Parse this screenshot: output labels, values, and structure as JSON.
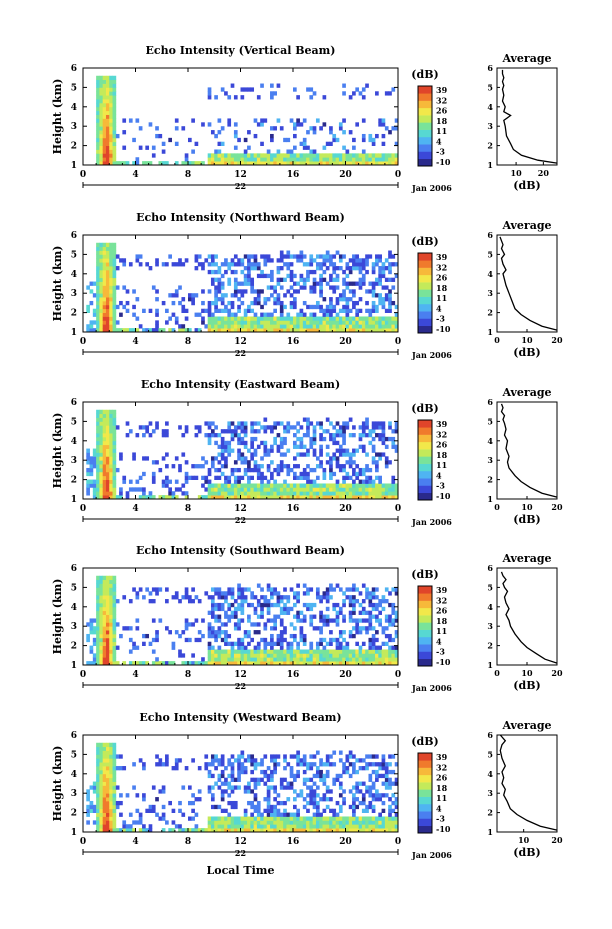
{
  "figure": {
    "xlabel": "Local Time",
    "date_label": "Jan 2006",
    "day_label": "22"
  },
  "colorbar": {
    "unit": "(dB)",
    "ticks": [
      "39",
      "32",
      "26",
      "18",
      "11",
      "4",
      "-3",
      "-10"
    ],
    "colors": [
      "#2a2a8c",
      "#3b48d8",
      "#4a7ff0",
      "#4fb4f2",
      "#57d8d2",
      "#79e39a",
      "#c4ea5a",
      "#f2e84a",
      "#f7b93a",
      "#f07a2c",
      "#e0452a"
    ]
  },
  "chart_data": [
    {
      "type": "heatmap",
      "title": "Echo Intensity (Vertical Beam)",
      "ylabel": "Height (km)",
      "x_ticks": [
        "0",
        "4",
        "8",
        "12",
        "16",
        "20",
        "0"
      ],
      "y_ticks": [
        "1",
        "2",
        "3",
        "4",
        "5",
        "6"
      ],
      "xlim": [
        0,
        24
      ],
      "ylim": [
        1,
        6
      ],
      "profile": {
        "title": "Average",
        "xlabel": "(dB)",
        "x_ticks": [
          "10",
          "20"
        ],
        "y_ticks": [
          "1",
          "2",
          "3",
          "4",
          "5",
          "6"
        ],
        "xlim": [
          3,
          25
        ],
        "ylim": [
          1,
          6
        ],
        "x": [
          25,
          18,
          12,
          9,
          8,
          6.5,
          6,
          5.5,
          8,
          5.5,
          6,
          5,
          5.5,
          5,
          5.5,
          5,
          5.5,
          5,
          5
        ],
        "y": [
          1.1,
          1.25,
          1.5,
          1.8,
          2.1,
          2.5,
          3.0,
          3.3,
          3.55,
          3.75,
          4.0,
          4.3,
          4.6,
          4.9,
          5.1,
          5.3,
          5.5,
          5.7,
          5.9
        ]
      }
    },
    {
      "type": "heatmap",
      "title": "Echo Intensity (Northward Beam)",
      "ylabel": "Height (km)",
      "x_ticks": [
        "0",
        "4",
        "8",
        "12",
        "16",
        "20",
        "0"
      ],
      "y_ticks": [
        "1",
        "2",
        "3",
        "4",
        "5",
        "6"
      ],
      "xlim": [
        0,
        24
      ],
      "ylim": [
        1,
        6
      ],
      "profile": {
        "title": "Average",
        "xlabel": "(dB)",
        "x_ticks": [
          "0",
          "10",
          "20"
        ],
        "y_ticks": [
          "1",
          "2",
          "3",
          "4",
          "5",
          "6"
        ],
        "xlim": [
          0,
          20
        ],
        "ylim": [
          1,
          6
        ],
        "x": [
          20,
          15,
          11,
          8,
          6,
          5,
          4,
          3,
          2.5,
          2,
          3,
          2,
          1.5,
          2.5,
          1.5,
          2,
          1.5,
          1
        ],
        "y": [
          1.1,
          1.3,
          1.6,
          1.9,
          2.2,
          2.6,
          3.0,
          3.4,
          3.7,
          4.0,
          4.2,
          4.5,
          4.8,
          5.0,
          5.3,
          5.5,
          5.7,
          5.9
        ]
      }
    },
    {
      "type": "heatmap",
      "title": "Echo Intensity (Eastward Beam)",
      "ylabel": "Height (km)",
      "x_ticks": [
        "0",
        "4",
        "8",
        "12",
        "16",
        "20",
        "0"
      ],
      "y_ticks": [
        "1",
        "2",
        "3",
        "4",
        "5",
        "6"
      ],
      "xlim": [
        0,
        24
      ],
      "ylim": [
        1,
        6
      ],
      "profile": {
        "title": "Average",
        "xlabel": "(dB)",
        "x_ticks": [
          "0",
          "10",
          "20"
        ],
        "y_ticks": [
          "1",
          "2",
          "3",
          "4",
          "5",
          "6"
        ],
        "xlim": [
          0,
          20
        ],
        "ylim": [
          1,
          6
        ],
        "x": [
          20,
          15,
          11,
          8,
          6,
          4,
          3.5,
          4,
          3,
          3.5,
          2.5,
          3,
          2.5,
          2,
          2.5,
          1.5,
          2,
          1.5
        ],
        "y": [
          1.1,
          1.3,
          1.6,
          1.9,
          2.2,
          2.6,
          2.9,
          3.2,
          3.6,
          4.0,
          4.3,
          4.6,
          4.9,
          5.1,
          5.3,
          5.5,
          5.7,
          5.9
        ]
      }
    },
    {
      "type": "heatmap",
      "title": "Echo Intensity (Southward Beam)",
      "ylabel": "Height (km)",
      "x_ticks": [
        "0",
        "4",
        "8",
        "12",
        "16",
        "20",
        "0"
      ],
      "y_ticks": [
        "1",
        "2",
        "3",
        "4",
        "5",
        "6"
      ],
      "xlim": [
        0,
        24
      ],
      "ylim": [
        1,
        6
      ],
      "profile": {
        "title": "Average",
        "xlabel": "(dB)",
        "x_ticks": [
          "0",
          "10",
          "20"
        ],
        "y_ticks": [
          "1",
          "2",
          "3",
          "4",
          "5",
          "6"
        ],
        "xlim": [
          0,
          20
        ],
        "ylim": [
          1,
          6
        ],
        "x": [
          20,
          16,
          13,
          10,
          8,
          6,
          4.5,
          4,
          3,
          4,
          3,
          2.5,
          3.5,
          2.5,
          2,
          3,
          2,
          1.5
        ],
        "y": [
          1.1,
          1.3,
          1.6,
          1.9,
          2.2,
          2.6,
          3.0,
          3.3,
          3.6,
          3.9,
          4.2,
          4.5,
          4.8,
          5.0,
          5.2,
          5.4,
          5.6,
          5.8
        ]
      }
    },
    {
      "type": "heatmap",
      "title": "Echo Intensity (Westward Beam)",
      "ylabel": "Height (km)",
      "x_ticks": [
        "0",
        "4",
        "8",
        "12",
        "16",
        "20",
        "0"
      ],
      "y_ticks": [
        "1",
        "2",
        "3",
        "4",
        "5",
        "6"
      ],
      "xlim": [
        0,
        24
      ],
      "ylim": [
        1,
        6
      ],
      "profile": {
        "title": "Average",
        "xlabel": "(dB)",
        "x_ticks": [
          "10",
          "20"
        ],
        "y_ticks": [
          "1",
          "2",
          "3",
          "4",
          "5",
          "6"
        ],
        "xlim": [
          2,
          20
        ],
        "ylim": [
          1,
          6
        ],
        "x": [
          20,
          15,
          11,
          8,
          6,
          5,
          4,
          4.5,
          3.5,
          4,
          3.5,
          4.5,
          3.5,
          3,
          3.5,
          4.5,
          3
        ],
        "y": [
          1.1,
          1.3,
          1.6,
          1.9,
          2.2,
          2.6,
          2.9,
          3.2,
          3.5,
          3.8,
          4.1,
          4.4,
          4.8,
          5.2,
          5.5,
          5.7,
          6.0
        ]
      }
    }
  ]
}
